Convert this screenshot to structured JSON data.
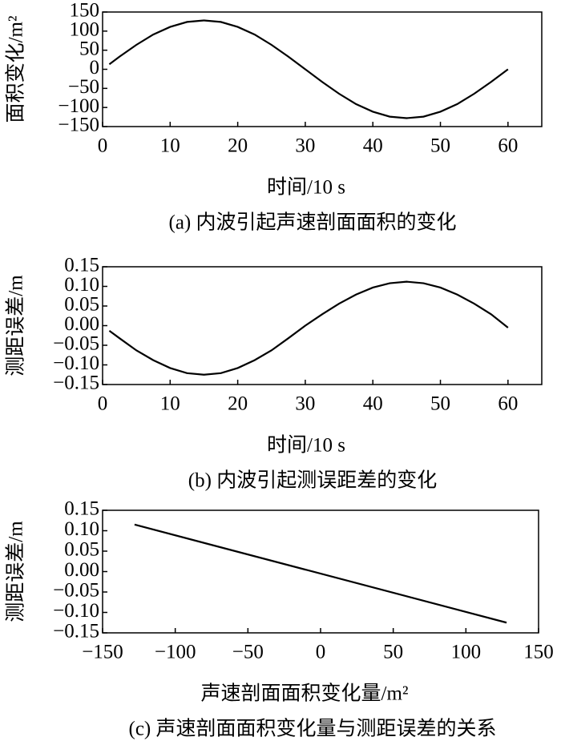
{
  "chart_data": [
    {
      "type": "line",
      "caption": "(a) 内波引起声速剖面面积的变化",
      "xlabel": "时间/10 s",
      "ylabel": "面积变化/m²",
      "x": [
        1,
        2.5,
        5,
        7.5,
        10,
        12.5,
        15,
        17.5,
        20,
        22.5,
        25,
        27.5,
        30,
        32.5,
        35,
        37.5,
        40,
        42.5,
        45,
        47.5,
        50,
        52.5,
        55,
        57.5,
        60
      ],
      "series": [
        {
          "color": "#000000",
          "values": [
            13,
            33,
            64,
            91,
            111,
            124,
            128,
            124,
            111,
            91,
            64,
            33,
            0,
            -33,
            -64,
            -91,
            -111,
            -124,
            -128,
            -124,
            -111,
            -91,
            -64,
            -33,
            0
          ]
        }
      ],
      "xlim": [
        0,
        65
      ],
      "xticks": [
        0,
        10,
        20,
        30,
        40,
        50,
        60
      ],
      "ylim": [
        -150,
        150
      ],
      "yticks": [
        {
          "value": -150,
          "label": "−150"
        },
        {
          "value": -100,
          "label": "−100"
        },
        {
          "value": -50,
          "label": "−50"
        },
        0,
        50,
        100,
        150
      ]
    },
    {
      "type": "line",
      "caption": "(b) 内波引起测误距差的变化",
      "xlabel": "时间/10 s",
      "ylabel": "测距误差/m",
      "x": [
        1,
        2.5,
        5,
        7.5,
        10,
        12.5,
        15,
        17.5,
        20,
        22.5,
        25,
        27.5,
        30,
        32.5,
        35,
        37.5,
        40,
        42.5,
        45,
        47.5,
        50,
        52.5,
        55,
        57.5,
        60
      ],
      "series": [
        {
          "color": "#000000",
          "values": [
            -0.013,
            -0.032,
            -0.063,
            -0.088,
            -0.108,
            -0.121,
            -0.125,
            -0.121,
            -0.108,
            -0.088,
            -0.063,
            -0.032,
            0,
            0.029,
            0.056,
            0.079,
            0.097,
            0.108,
            0.112,
            0.108,
            0.097,
            0.079,
            0.056,
            0.029,
            -0.005
          ]
        }
      ],
      "xlim": [
        0,
        65
      ],
      "xticks": [
        0,
        10,
        20,
        30,
        40,
        50,
        60
      ],
      "ylim": [
        -0.15,
        0.15
      ],
      "yticks": [
        {
          "value": -0.15,
          "label": "−0.15"
        },
        {
          "value": -0.1,
          "label": "−0.10"
        },
        {
          "value": -0.05,
          "label": "−0.05"
        },
        {
          "value": 0,
          "label": "0.00"
        },
        {
          "value": 0.05,
          "label": "0.05"
        },
        {
          "value": 0.1,
          "label": "0.10"
        },
        {
          "value": 0.15,
          "label": "0.15"
        }
      ]
    },
    {
      "type": "line",
      "caption": "(c) 声速剖面面积变化量与测距误差的关系",
      "xlabel": "声速剖面面积变化量/m²",
      "ylabel": "测距误差/m",
      "x": [
        -128,
        128
      ],
      "series": [
        {
          "color": "#000000",
          "values": [
            0.115,
            -0.125
          ]
        }
      ],
      "xlim": [
        -150,
        150
      ],
      "xticks": [
        {
          "value": -150,
          "label": "−150"
        },
        {
          "value": -100,
          "label": "−100"
        },
        {
          "value": -50,
          "label": "−50"
        },
        0,
        50,
        100,
        150
      ],
      "ylim": [
        -0.15,
        0.15
      ],
      "yticks": [
        {
          "value": -0.15,
          "label": "−0.15"
        },
        {
          "value": -0.1,
          "label": "−0.10"
        },
        {
          "value": -0.05,
          "label": "−0.05"
        },
        {
          "value": 0,
          "label": "0.00"
        },
        {
          "value": 0.05,
          "label": "0.05"
        },
        {
          "value": 0.1,
          "label": "0.10"
        },
        {
          "value": 0.15,
          "label": "0.15"
        }
      ]
    }
  ]
}
